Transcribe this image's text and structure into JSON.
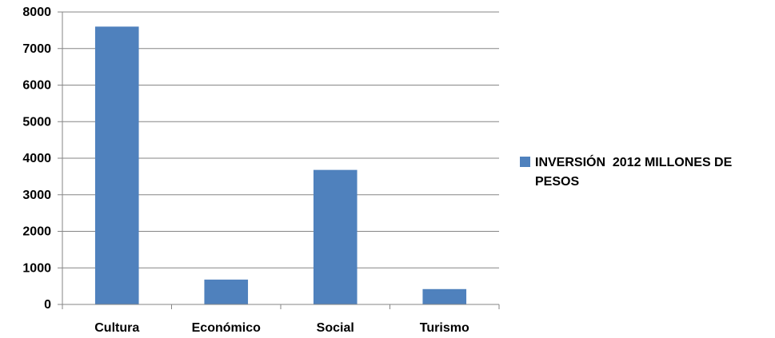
{
  "chart_data": {
    "type": "bar",
    "categories": [
      "Cultura",
      "Económico",
      "Social",
      "Turismo"
    ],
    "series": [
      {
        "name": "INVERSIÓN  2012 MILLONES DE PESOS",
        "values": [
          7600,
          680,
          3680,
          420
        ],
        "color": "#4f81bd"
      }
    ],
    "xlabel": "",
    "ylabel": "",
    "ylim": [
      0,
      8000
    ],
    "yticks": [
      "0",
      "1000",
      "2000",
      "3000",
      "4000",
      "5000",
      "6000",
      "7000",
      "8000"
    ],
    "grid": "horizontal",
    "legend_position": "right"
  }
}
